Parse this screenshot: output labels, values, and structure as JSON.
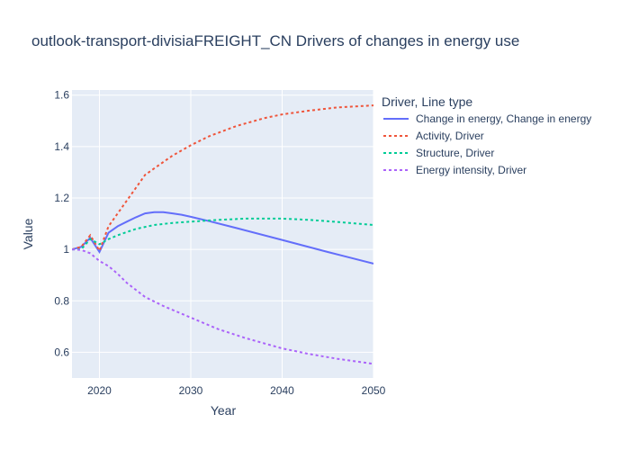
{
  "chart_data": {
    "type": "line",
    "title": "outlook-transport-divisiaFREIGHT_CN Drivers of changes in energy use",
    "xlabel": "Year",
    "ylabel": "Value",
    "xlim": [
      2017,
      2050
    ],
    "ylim": [
      0.5,
      1.62
    ],
    "x_ticks": [
      2020,
      2030,
      2040,
      2050
    ],
    "y_ticks": [
      0.6,
      0.8,
      1,
      1.2,
      1.4,
      1.6
    ],
    "y_tick_labels": [
      "0.6",
      "0.8",
      "1",
      "1.2",
      "1.4",
      "1.6"
    ],
    "grid": true,
    "legend": {
      "title": "Driver, Line type",
      "placement": "right"
    },
    "series": [
      {
        "name": "Change in energy, Change in energy",
        "color": "#636efa",
        "dash": "solid",
        "x": [
          2017,
          2018,
          2019,
          2020,
          2021,
          2022,
          2023,
          2024,
          2025,
          2026,
          2027,
          2028,
          2029,
          2030,
          2032,
          2035,
          2040,
          2045,
          2050
        ],
        "y": [
          1.0,
          1.01,
          1.045,
          0.99,
          1.065,
          1.09,
          1.108,
          1.125,
          1.14,
          1.145,
          1.145,
          1.14,
          1.135,
          1.127,
          1.11,
          1.083,
          1.037,
          0.99,
          0.945
        ]
      },
      {
        "name": "Activity, Driver",
        "color": "#ef553b",
        "dash": "dot",
        "x": [
          2017,
          2018,
          2019,
          2020,
          2021,
          2022,
          2023,
          2024,
          2025,
          2026,
          2027,
          2028,
          2030,
          2032,
          2035,
          2038,
          2040,
          2043,
          2046,
          2050
        ],
        "y": [
          1.0,
          1.01,
          1.055,
          0.995,
          1.09,
          1.14,
          1.19,
          1.24,
          1.29,
          1.315,
          1.34,
          1.365,
          1.405,
          1.44,
          1.48,
          1.51,
          1.525,
          1.54,
          1.552,
          1.56
        ]
      },
      {
        "name": "Structure, Driver",
        "color": "#00cc96",
        "dash": "dot",
        "x": [
          2017,
          2018,
          2019,
          2020,
          2021,
          2022,
          2024,
          2026,
          2028,
          2030,
          2033,
          2036,
          2040,
          2043,
          2046,
          2050
        ],
        "y": [
          1.0,
          1.0,
          1.04,
          1.02,
          1.04,
          1.055,
          1.08,
          1.095,
          1.103,
          1.108,
          1.115,
          1.12,
          1.12,
          1.115,
          1.107,
          1.095
        ]
      },
      {
        "name": "Energy intensity, Driver",
        "color": "#ab63fa",
        "dash": "dot",
        "x": [
          2017,
          2018,
          2019,
          2020,
          2021,
          2022,
          2023,
          2025,
          2027,
          2030,
          2033,
          2036,
          2040,
          2043,
          2046,
          2050
        ],
        "y": [
          1.0,
          0.998,
          0.985,
          0.955,
          0.935,
          0.905,
          0.87,
          0.815,
          0.78,
          0.735,
          0.69,
          0.655,
          0.615,
          0.593,
          0.575,
          0.555
        ]
      }
    ]
  }
}
